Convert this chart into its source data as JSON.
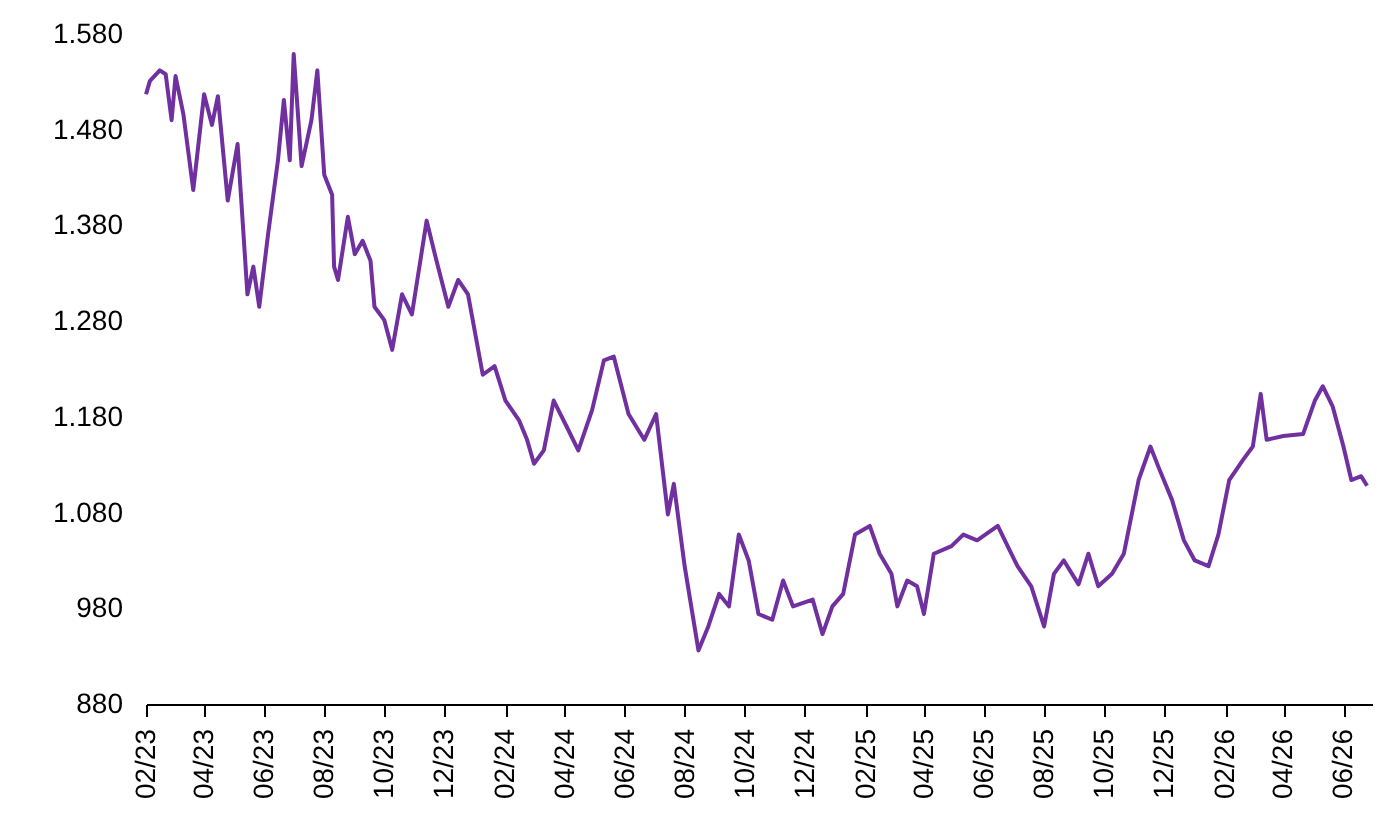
{
  "chart_data": {
    "type": "line",
    "x": [
      "2023-02-01",
      "2023-02-05",
      "2023-02-15",
      "2023-02-21",
      "2023-02-27",
      "2023-03-03",
      "2023-03-11",
      "2023-03-21",
      "2023-04-01",
      "2023-04-09",
      "2023-04-15",
      "2023-04-25",
      "2023-05-05",
      "2023-05-15",
      "2023-05-21",
      "2023-05-27",
      "2023-06-05",
      "2023-06-15",
      "2023-06-21",
      "2023-06-27",
      "2023-07-01",
      "2023-07-09",
      "2023-07-19",
      "2023-07-25",
      "2023-08-01",
      "2023-08-09",
      "2023-08-11",
      "2023-08-15",
      "2023-08-25",
      "2023-09-01",
      "2023-09-09",
      "2023-09-17",
      "2023-09-21",
      "2023-10-01",
      "2023-10-09",
      "2023-10-19",
      "2023-10-29",
      "2023-11-13",
      "2023-11-23",
      "2023-12-05",
      "2023-12-15",
      "2023-12-25",
      "2024-01-09",
      "2024-01-21",
      "2024-02-01",
      "2024-02-15",
      "2024-02-23",
      "2024-03-01",
      "2024-03-11",
      "2024-03-21",
      "2024-04-05",
      "2024-04-15",
      "2024-04-29",
      "2024-05-11",
      "2024-05-21",
      "2024-06-05",
      "2024-06-21",
      "2024-07-03",
      "2024-07-15",
      "2024-07-21",
      "2024-08-01",
      "2024-08-15",
      "2024-08-25",
      "2024-09-05",
      "2024-09-15",
      "2024-09-25",
      "2024-10-05",
      "2024-10-15",
      "2024-10-29",
      "2024-11-09",
      "2024-11-19",
      "2024-12-09",
      "2024-12-19",
      "2024-12-29",
      "2025-01-09",
      "2025-01-21",
      "2025-02-05",
      "2025-02-15",
      "2025-02-27",
      "2025-03-05",
      "2025-03-15",
      "2025-03-25",
      "2025-04-01",
      "2025-04-11",
      "2025-04-29",
      "2025-05-11",
      "2025-05-25",
      "2025-06-15",
      "2025-06-25",
      "2025-07-05",
      "2025-07-19",
      "2025-08-01",
      "2025-08-11",
      "2025-08-21",
      "2025-09-05",
      "2025-09-15",
      "2025-09-25",
      "2025-10-09",
      "2025-10-21",
      "2025-11-05",
      "2025-11-17",
      "2025-11-25",
      "2025-12-09",
      "2025-12-21",
      "2026-01-01",
      "2026-01-15",
      "2026-01-25",
      "2026-02-05",
      "2026-02-19",
      "2026-03-01",
      "2026-03-09",
      "2026-03-15",
      "2026-04-01",
      "2026-04-21",
      "2026-05-03",
      "2026-05-11",
      "2026-05-21",
      "2026-06-01",
      "2026-06-09",
      "2026-06-19",
      "2026-06-25"
    ],
    "series": [
      {
        "color": "#7030a0",
        "values": [
          1517,
          1531,
          1542,
          1538,
          1490,
          1536,
          1496,
          1417,
          1517,
          1485,
          1515,
          1406,
          1465,
          1308,
          1337,
          1295,
          1371,
          1448,
          1511,
          1448,
          1559,
          1442,
          1490,
          1542,
          1433,
          1412,
          1337,
          1323,
          1389,
          1350,
          1364,
          1343,
          1295,
          1281,
          1250,
          1308,
          1287,
          1385,
          1343,
          1295,
          1323,
          1308,
          1224,
          1233,
          1197,
          1176,
          1156,
          1131,
          1145,
          1197,
          1166,
          1145,
          1187,
          1239,
          1243,
          1183,
          1156,
          1183,
          1078,
          1110,
          1024,
          936,
          961,
          995,
          982,
          1057,
          1030,
          974,
          968,
          1009,
          982,
          989,
          953,
          982,
          995,
          1057,
          1066,
          1037,
          1016,
          982,
          1009,
          1003,
          974,
          1037,
          1045,
          1057,
          1051,
          1066,
          1045,
          1024,
          1003,
          961,
          1016,
          1030,
          1005,
          1037,
          1003,
          1016,
          1037,
          1114,
          1149,
          1128,
          1093,
          1051,
          1030,
          1024,
          1057,
          1114,
          1135,
          1149,
          1204,
          1156,
          1160,
          1162,
          1197,
          1212,
          1191,
          1149,
          1114,
          1118,
          1108
        ]
      }
    ],
    "xlim": [
      "2023-02-01",
      "2026-06-30"
    ],
    "xticks": [
      {
        "value": "2023-02-01",
        "label": "02/23"
      },
      {
        "value": "2023-04-01",
        "label": "04/23"
      },
      {
        "value": "2023-06-01",
        "label": "06/23"
      },
      {
        "value": "2023-08-01",
        "label": "08/23"
      },
      {
        "value": "2023-10-01",
        "label": "10/23"
      },
      {
        "value": "2023-12-01",
        "label": "12/23"
      },
      {
        "value": "2024-02-01",
        "label": "02/24"
      },
      {
        "value": "2024-04-01",
        "label": "04/24"
      },
      {
        "value": "2024-06-01",
        "label": "06/24"
      },
      {
        "value": "2024-08-01",
        "label": "08/24"
      },
      {
        "value": "2024-10-01",
        "label": "10/24"
      },
      {
        "value": "2024-12-01",
        "label": "12/24"
      },
      {
        "value": "2025-02-01",
        "label": "02/25"
      },
      {
        "value": "2025-04-01",
        "label": "04/25"
      },
      {
        "value": "2025-06-01",
        "label": "06/25"
      },
      {
        "value": "2025-08-01",
        "label": "08/25"
      },
      {
        "value": "2025-10-01",
        "label": "10/25"
      },
      {
        "value": "2025-12-01",
        "label": "12/25"
      },
      {
        "value": "2026-02-01",
        "label": "02/26"
      },
      {
        "value": "2026-04-01",
        "label": "04/26"
      },
      {
        "value": "2026-06-01",
        "label": "06/26"
      }
    ],
    "ylim": [
      880,
      1580
    ],
    "yticks": [
      880,
      980,
      {
        "value": 1080,
        "label": "1.080"
      },
      {
        "value": 1180,
        "label": "1.180"
      },
      {
        "value": 1280,
        "label": "1.280"
      },
      {
        "value": 1380,
        "label": "1.380"
      },
      {
        "value": 1480,
        "label": "1.480"
      },
      {
        "value": 1580,
        "label": "1.580"
      }
    ],
    "grid": false,
    "line_style": "solid",
    "marker": "none"
  }
}
